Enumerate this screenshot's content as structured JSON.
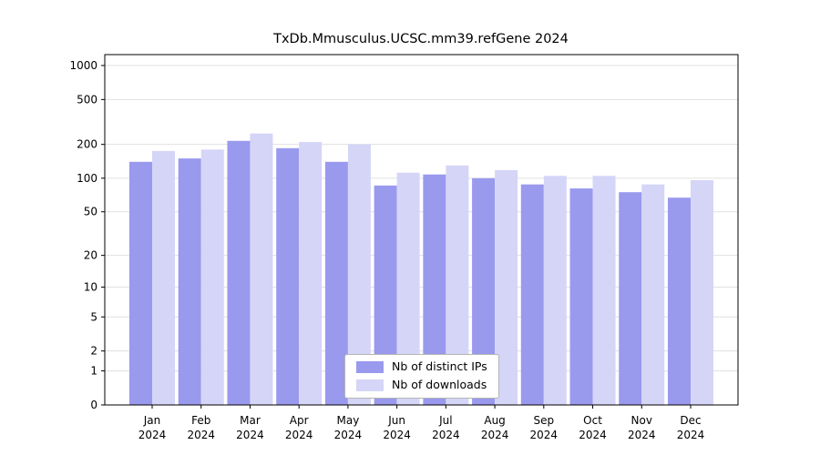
{
  "chart_data": {
    "type": "bar",
    "title": "TxDb.Mmusculus.UCSC.mm39.refGene 2024",
    "categories": [
      {
        "month": "Jan",
        "year": "2024"
      },
      {
        "month": "Feb",
        "year": "2024"
      },
      {
        "month": "Mar",
        "year": "2024"
      },
      {
        "month": "Apr",
        "year": "2024"
      },
      {
        "month": "May",
        "year": "2024"
      },
      {
        "month": "Jun",
        "year": "2024"
      },
      {
        "month": "Jul",
        "year": "2024"
      },
      {
        "month": "Aug",
        "year": "2024"
      },
      {
        "month": "Sep",
        "year": "2024"
      },
      {
        "month": "Oct",
        "year": "2024"
      },
      {
        "month": "Nov",
        "year": "2024"
      },
      {
        "month": "Dec",
        "year": "2024"
      }
    ],
    "series": [
      {
        "name": "Nb of distinct IPs",
        "color": "#9999ee",
        "values": [
          140,
          150,
          215,
          185,
          140,
          86,
          108,
          100,
          88,
          81,
          75,
          67
        ]
      },
      {
        "name": "Nb of downloads",
        "color": "#d5d5f8",
        "values": [
          175,
          180,
          250,
          210,
          200,
          112,
          130,
          118,
          105,
          105,
          88,
          96
        ]
      }
    ],
    "yticks": [
      0,
      1,
      2,
      5,
      10,
      20,
      50,
      100,
      200,
      500,
      1000
    ],
    "scale": "log1p",
    "ylim": [
      0,
      1250
    ],
    "grid": true,
    "legend_position": "bottom-center",
    "colors": {
      "grid": "#e0e0e0",
      "axis": "#000000",
      "background": "#ffffff"
    }
  }
}
